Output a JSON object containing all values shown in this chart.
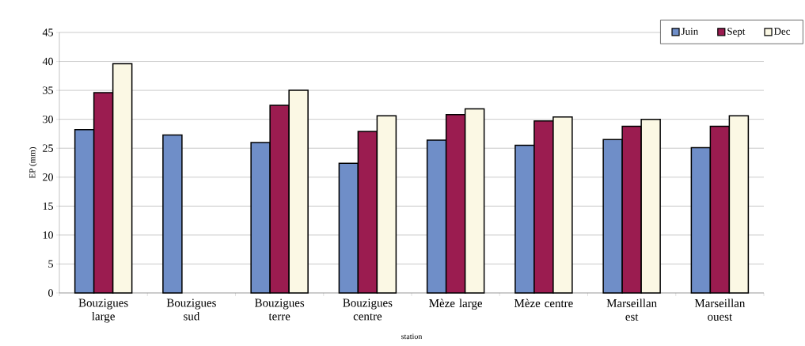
{
  "chart_data": {
    "type": "bar",
    "xlabel": "station",
    "ylabel": "EP (mm)",
    "categories": [
      "Bouzigues large",
      "Bouzigues sud",
      "Bouzigues terre",
      "Bouzigues centre",
      "Mèze large",
      "Mèze centre",
      "Marseillan est",
      "Marseillan ouest"
    ],
    "series": [
      {
        "name": "Juin",
        "color": "#6f8ec8",
        "values": [
          28.2,
          27.3,
          26.0,
          22.4,
          26.4,
          25.5,
          26.5,
          25.1
        ]
      },
      {
        "name": "Sept",
        "color": "#9b1c50",
        "values": [
          34.6,
          null,
          32.4,
          27.9,
          30.8,
          29.7,
          28.8,
          28.8
        ]
      },
      {
        "name": "Dec",
        "color": "#fbf8e4",
        "values": [
          39.6,
          null,
          35.0,
          30.6,
          31.8,
          30.4,
          30.0,
          30.6
        ]
      }
    ],
    "ylim": [
      0,
      45
    ],
    "yticks": [
      0,
      5,
      10,
      15,
      20,
      25,
      30,
      35,
      40,
      45
    ],
    "grid": "y",
    "legend": "top right"
  }
}
